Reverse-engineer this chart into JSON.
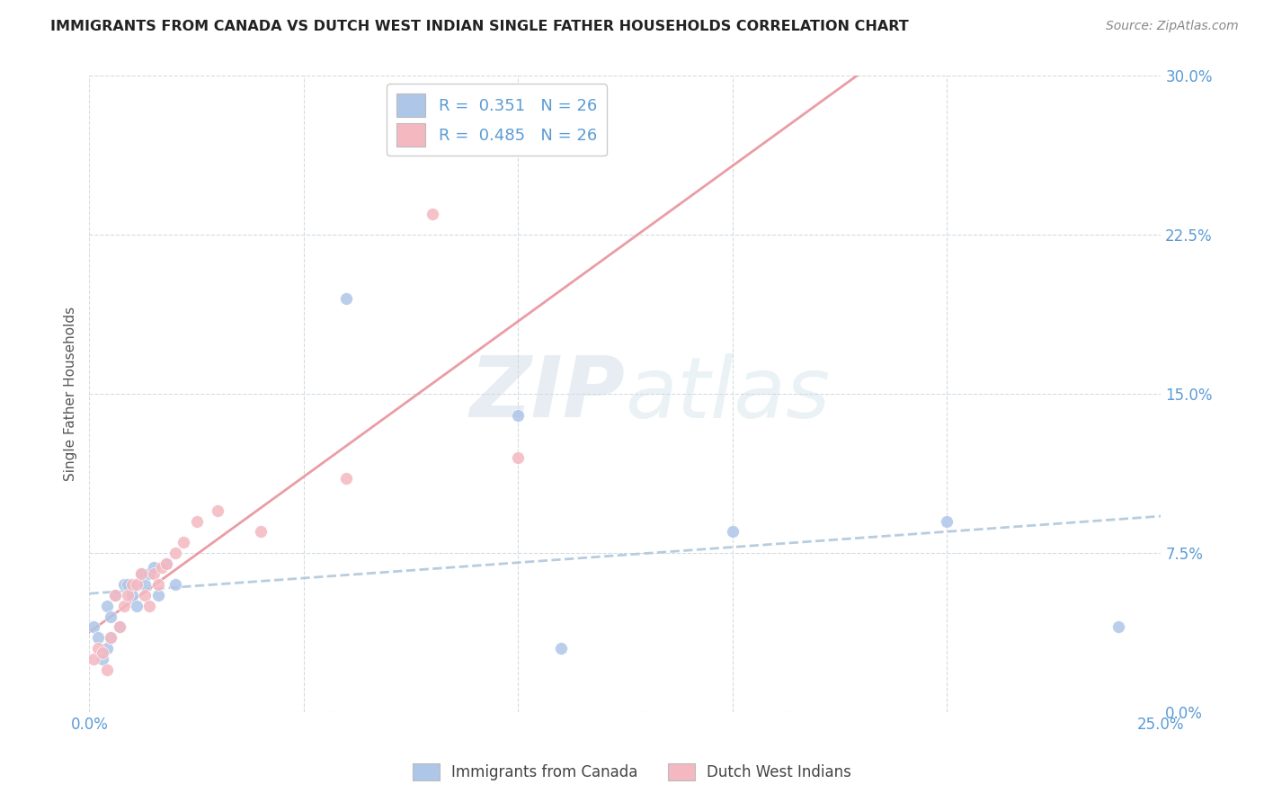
{
  "title": "IMMIGRANTS FROM CANADA VS DUTCH WEST INDIAN SINGLE FATHER HOUSEHOLDS CORRELATION CHART",
  "source": "Source: ZipAtlas.com",
  "ylabel": "Single Father Households",
  "watermark_zip": "ZIP",
  "watermark_atlas": "atlas",
  "canada_color": "#aec6e8",
  "dutch_color": "#f4b8c1",
  "canada_line_color": "#89b8d8",
  "dutch_line_color": "#e8929a",
  "background_color": "#ffffff",
  "grid_color": "#d0d8e0",
  "axis_label_color": "#5b9bd5",
  "marker_size": 100,
  "xlim": [
    0.0,
    0.25
  ],
  "ylim": [
    0.0,
    0.3
  ],
  "xticks": [
    0.0,
    0.05,
    0.1,
    0.15,
    0.2,
    0.25
  ],
  "yticks": [
    0.0,
    0.075,
    0.15,
    0.225,
    0.3
  ],
  "canada_scatter_x": [
    0.001,
    0.002,
    0.003,
    0.004,
    0.004,
    0.005,
    0.005,
    0.006,
    0.007,
    0.008,
    0.009,
    0.01,
    0.011,
    0.012,
    0.013,
    0.014,
    0.015,
    0.016,
    0.018,
    0.02,
    0.06,
    0.1,
    0.11,
    0.15,
    0.2,
    0.24
  ],
  "canada_scatter_y": [
    0.04,
    0.035,
    0.025,
    0.05,
    0.03,
    0.045,
    0.035,
    0.055,
    0.04,
    0.06,
    0.06,
    0.055,
    0.05,
    0.065,
    0.06,
    0.065,
    0.068,
    0.055,
    0.07,
    0.06,
    0.195,
    0.14,
    0.03,
    0.085,
    0.09,
    0.04
  ],
  "dutch_scatter_x": [
    0.001,
    0.002,
    0.003,
    0.004,
    0.005,
    0.006,
    0.007,
    0.008,
    0.009,
    0.01,
    0.011,
    0.012,
    0.013,
    0.014,
    0.015,
    0.016,
    0.017,
    0.018,
    0.02,
    0.022,
    0.025,
    0.03,
    0.04,
    0.06,
    0.08,
    0.1
  ],
  "dutch_scatter_y": [
    0.025,
    0.03,
    0.028,
    0.02,
    0.035,
    0.055,
    0.04,
    0.05,
    0.055,
    0.06,
    0.06,
    0.065,
    0.055,
    0.05,
    0.065,
    0.06,
    0.068,
    0.07,
    0.075,
    0.08,
    0.09,
    0.095,
    0.085,
    0.11,
    0.235,
    0.12
  ],
  "canada_R": 0.351,
  "dutch_R": 0.485,
  "N": 26
}
